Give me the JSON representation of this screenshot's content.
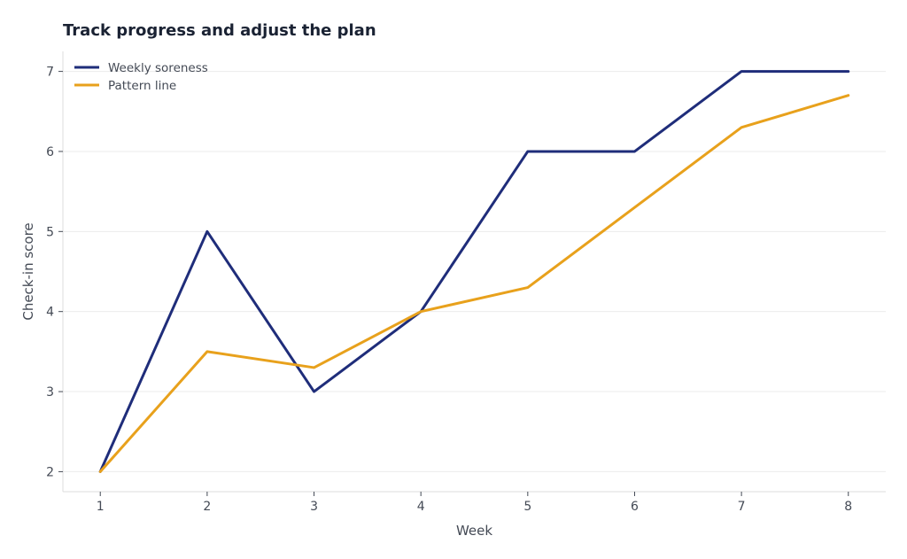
{
  "chart_data": {
    "type": "line",
    "title": "Track progress and adjust the plan",
    "xlabel": "Week",
    "ylabel": "Check-in score",
    "x": [
      1,
      2,
      3,
      4,
      5,
      6,
      7,
      8
    ],
    "xlim": [
      0.65,
      8.35
    ],
    "ylim": [
      1.75,
      7.25
    ],
    "xticks": [
      1,
      2,
      3,
      4,
      5,
      6,
      7,
      8
    ],
    "yticks": [
      2,
      3,
      4,
      5,
      6,
      7
    ],
    "grid": "horizontal",
    "legend_position": "top-left",
    "series": [
      {
        "name": "Weekly soreness",
        "color": "#1f2d7a",
        "values": [
          2,
          5,
          3,
          4,
          6,
          6,
          7,
          7
        ]
      },
      {
        "name": "Pattern line",
        "color": "#e8a11c",
        "values": [
          2,
          3.5,
          3.3,
          4,
          4.3,
          5.3,
          6.3,
          6.7
        ]
      }
    ]
  }
}
